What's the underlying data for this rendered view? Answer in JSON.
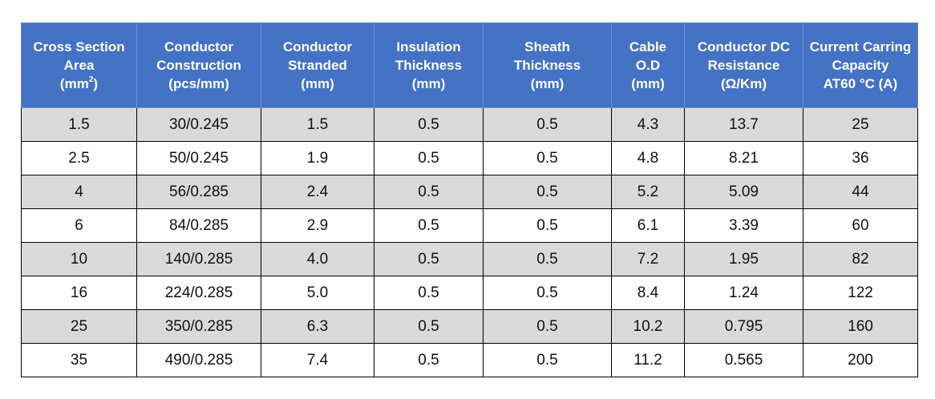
{
  "headers": [
    {
      "lines": [
        "Cross Section",
        "Area"
      ],
      "unit_prefix": "(mm",
      "unit_sup": "2",
      "unit_suffix": ")"
    },
    {
      "lines": [
        "Conductor",
        "Construction",
        "(pcs/mm)"
      ]
    },
    {
      "lines": [
        "Conductor",
        "Stranded",
        "(mm)"
      ]
    },
    {
      "lines": [
        "Insulation",
        "Thickness",
        "(mm)"
      ]
    },
    {
      "lines": [
        "Sheath",
        "Thickness",
        "(mm)"
      ]
    },
    {
      "lines": [
        "Cable",
        "O.D",
        "(mm)"
      ]
    },
    {
      "lines": [
        "Conductor DC",
        "Resistance",
        "(Ω/Km)"
      ]
    },
    {
      "lines": [
        "Current Carring",
        "Capacity",
        "AT60 °C (A)"
      ]
    }
  ],
  "rows": [
    [
      "1.5",
      "30/0.245",
      "1.5",
      "0.5",
      "0.5",
      "4.3",
      "13.7",
      "25"
    ],
    [
      "2.5",
      "50/0.245",
      "1.9",
      "0.5",
      "0.5",
      "4.8",
      "8.21",
      "36"
    ],
    [
      "4",
      "56/0.285",
      "2.4",
      "0.5",
      "0.5",
      "5.2",
      "5.09",
      "44"
    ],
    [
      "6",
      "84/0.285",
      "2.9",
      "0.5",
      "0.5",
      "6.1",
      "3.39",
      "60"
    ],
    [
      "10",
      "140/0.285",
      "4.0",
      "0.5",
      "0.5",
      "7.2",
      "1.95",
      "82"
    ],
    [
      "16",
      "224/0.285",
      "5.0",
      "0.5",
      "0.5",
      "8.4",
      "1.24",
      "122"
    ],
    [
      "25",
      "350/0.285",
      "6.3",
      "0.5",
      "0.5",
      "10.2",
      "0.795",
      "160"
    ],
    [
      "35",
      "490/0.285",
      "7.4",
      "0.5",
      "0.5",
      "11.2",
      "0.565",
      "200"
    ]
  ],
  "colors": {
    "header_bg": "#4472c4",
    "header_text": "#ffffff",
    "shaded_row": "#d9d9d9",
    "plain_row": "#ffffff"
  }
}
